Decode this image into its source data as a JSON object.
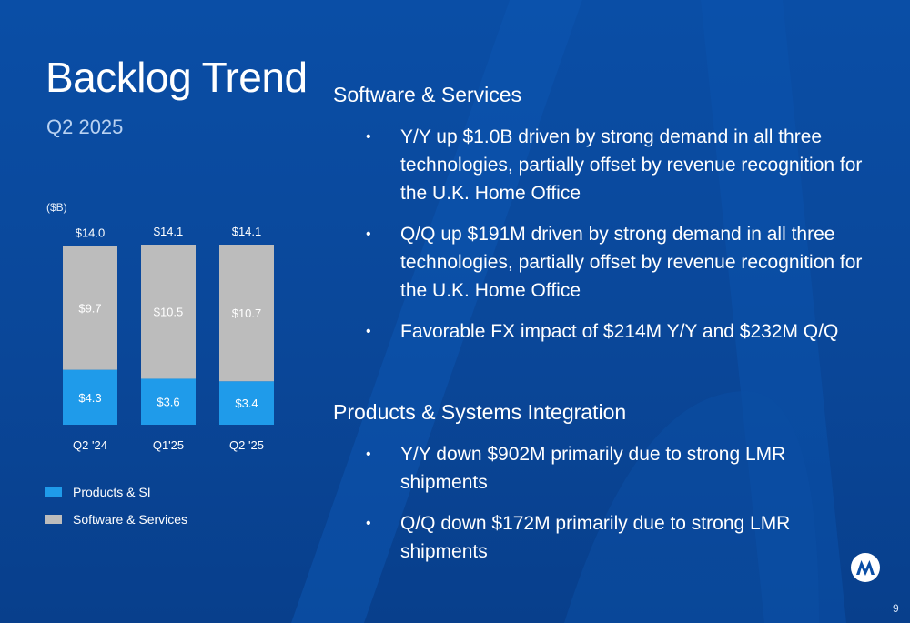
{
  "slide": {
    "title": "Backlog Trend",
    "subtitle": "Q2 2025",
    "unit_label": "($B)",
    "page_number": "9",
    "logo_icon": "motorola-m-logo-icon"
  },
  "colors": {
    "background": "#0a4ea6",
    "products_si": "#1f9bea",
    "software_services": "#bcbcbc"
  },
  "chart_data": {
    "type": "bar",
    "stacked": true,
    "categories": [
      "Q2 '24",
      "Q1'25",
      "Q2 '25"
    ],
    "series": [
      {
        "name": "Products & SI",
        "values": [
          4.3,
          3.6,
          3.4
        ],
        "labels": [
          "$4.3",
          "$3.6",
          "$3.4"
        ],
        "color": "#1f9bea"
      },
      {
        "name": "Software & Services",
        "values": [
          9.7,
          10.5,
          10.7
        ],
        "labels": [
          "$9.7",
          "$10.5",
          "$10.7"
        ],
        "color": "#bcbcbc"
      }
    ],
    "totals": [
      14.0,
      14.1,
      14.1
    ],
    "total_labels": [
      "$14.0",
      "$14.1",
      "$14.1"
    ],
    "ylabel": "($B)",
    "ylim": [
      0,
      14.1
    ],
    "grid": false,
    "legend_position": "bottom-left"
  },
  "sections": [
    {
      "heading": "Software & Services",
      "bullets": [
        "Y/Y up $1.0B driven by strong demand in all three technologies, partially offset by revenue recognition for the U.K. Home Office",
        "Q/Q up $191M driven by strong demand in all three technologies, partially offset by revenue recognition for the U.K. Home Office",
        "Favorable FX impact of $214M Y/Y and $232M Q/Q"
      ]
    },
    {
      "heading": "Products & Systems Integration",
      "bullets": [
        "Y/Y down $902M primarily due to strong LMR shipments",
        "Q/Q down $172M primarily due to strong LMR shipments"
      ]
    }
  ]
}
